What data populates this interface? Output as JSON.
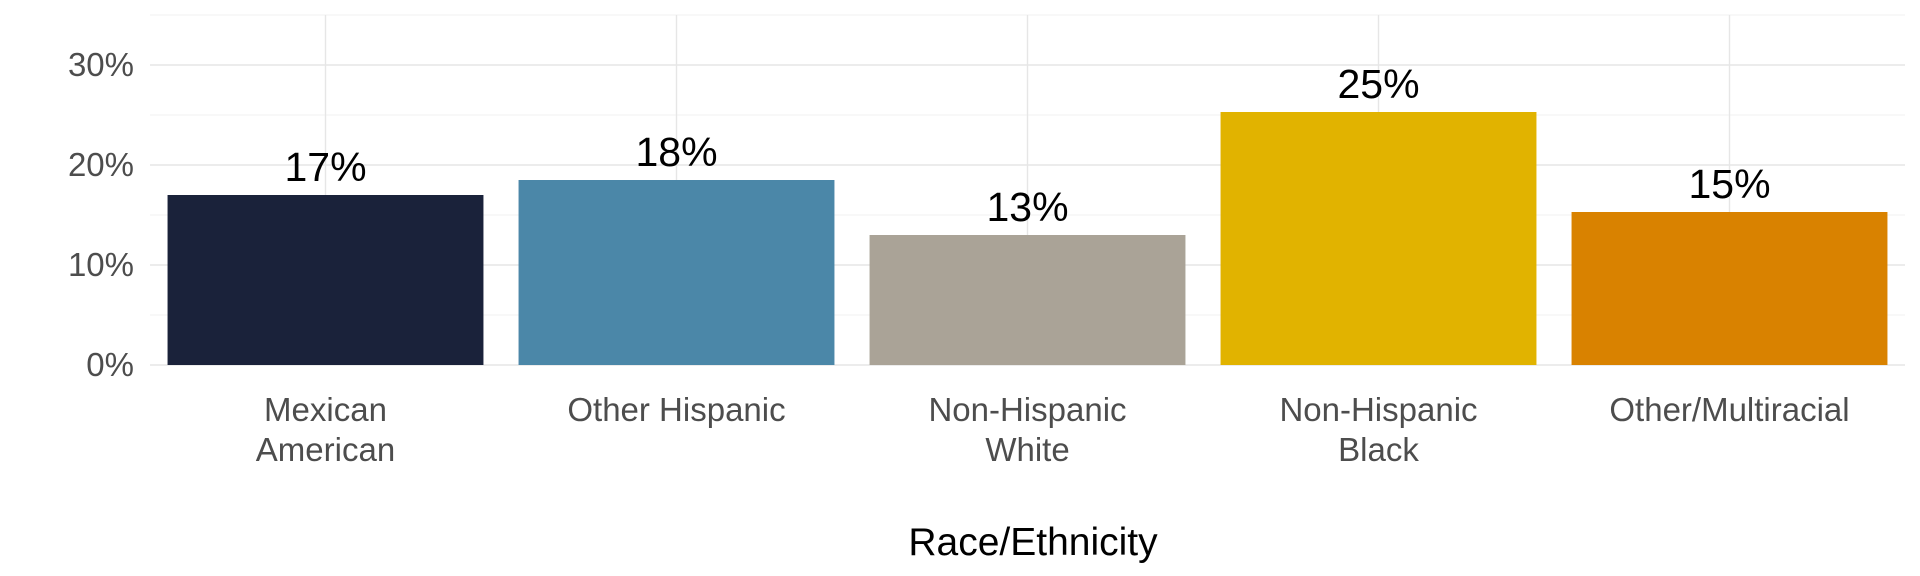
{
  "chart_data": {
    "type": "bar",
    "title": "",
    "xlabel": "Race/Ethnicity",
    "ylabel": "",
    "ylim": [
      0,
      35
    ],
    "yticks": [
      0,
      10,
      20,
      30
    ],
    "ytick_labels": [
      "0%",
      "10%",
      "20%",
      "30%"
    ],
    "grid": true,
    "legend": "none",
    "categories": [
      [
        "Mexican",
        "American"
      ],
      [
        "Other Hispanic"
      ],
      [
        "Non-Hispanic",
        "White"
      ],
      [
        "Non-Hispanic",
        "Black"
      ],
      [
        "Other/Multiracial"
      ]
    ],
    "values": [
      17,
      18.5,
      13,
      25.3,
      15.3
    ],
    "value_labels": [
      "17%",
      "18%",
      "13%",
      "25%",
      "15%"
    ],
    "colors": [
      "#1a223a",
      "#4b87a8",
      "#aaa397",
      "#e1b300",
      "#d98200"
    ]
  }
}
